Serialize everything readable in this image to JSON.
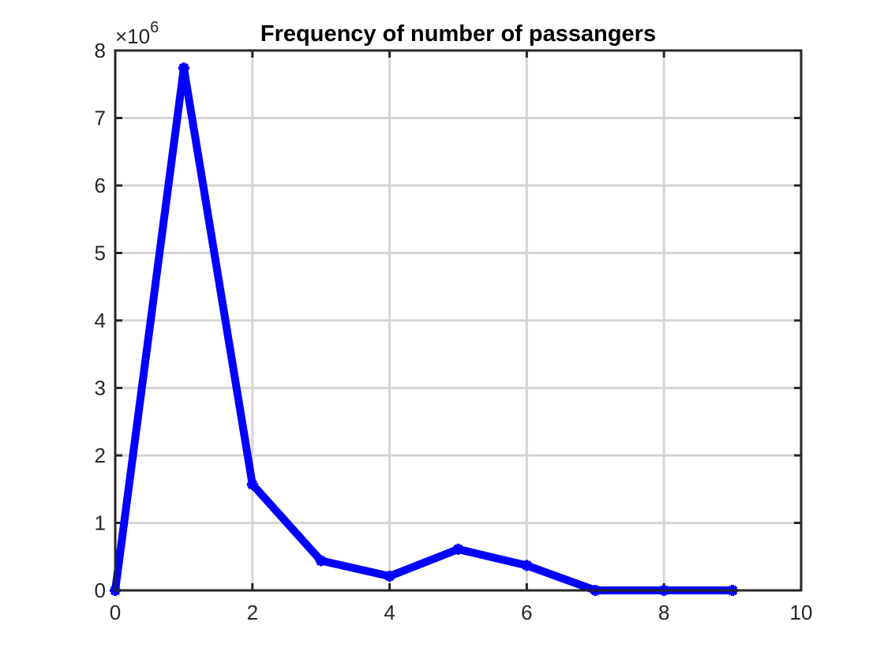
{
  "chart_data": {
    "type": "line",
    "title": "Frequency of number of passangers",
    "xlabel": "",
    "ylabel": "",
    "xlim": [
      0,
      10
    ],
    "ylim": [
      0,
      8000000
    ],
    "x_ticks": [
      "0",
      "2",
      "4",
      "6",
      "8",
      "10"
    ],
    "y_ticks": [
      "0",
      "1",
      "2",
      "3",
      "4",
      "5",
      "6",
      "7",
      "8"
    ],
    "y_multiplier_base": "×10",
    "y_multiplier_exponent": "6",
    "grid": true,
    "series": [
      {
        "name": "frequency",
        "color": "#0000ff",
        "marker": "asterisk",
        "x": [
          0,
          1,
          2,
          3,
          4,
          5,
          6,
          7,
          8,
          9
        ],
        "values": [
          0,
          7740000,
          1570000,
          440000,
          210000,
          610000,
          370000,
          0,
          0,
          0
        ]
      }
    ]
  }
}
